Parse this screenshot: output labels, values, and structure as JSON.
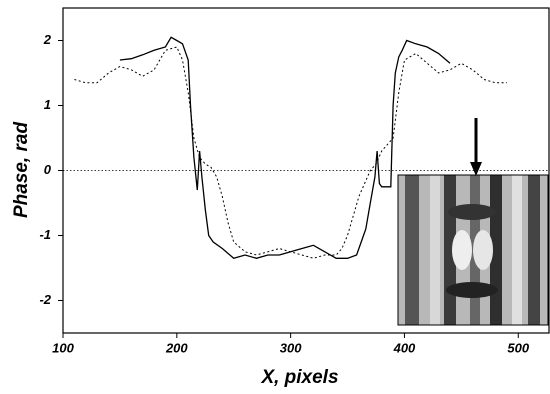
{
  "chart_data": {
    "type": "line",
    "xlabel": "X, pixels",
    "ylabel": "Phase, rad",
    "xlim": [
      100,
      527
    ],
    "ylim": [
      -2.5,
      2.5
    ],
    "xticks": [
      100,
      200,
      300,
      400,
      500
    ],
    "yticks": [
      -2,
      -1,
      0,
      1,
      2
    ],
    "reference_line": 0,
    "series": [
      {
        "color": "#000000",
        "style": "solid",
        "x": [
          150,
          160,
          170,
          180,
          190,
          195,
          200,
          205,
          210,
          212,
          215,
          218,
          220,
          222,
          225,
          228,
          232,
          240,
          250,
          260,
          270,
          280,
          290,
          300,
          310,
          320,
          330,
          340,
          350,
          358,
          362,
          366,
          370,
          374,
          376,
          378,
          380,
          388,
          390,
          392,
          395,
          398,
          402,
          410,
          420,
          430,
          440
        ],
        "values": [
          1.7,
          1.72,
          1.78,
          1.85,
          1.9,
          2.05,
          2.0,
          1.95,
          1.7,
          1.0,
          0.2,
          -0.3,
          0.3,
          -0.1,
          -0.6,
          -1.0,
          -1.1,
          -1.2,
          -1.35,
          -1.3,
          -1.35,
          -1.3,
          -1.3,
          -1.25,
          -1.2,
          -1.15,
          -1.25,
          -1.35,
          -1.35,
          -1.3,
          -1.1,
          -0.9,
          -0.5,
          -0.1,
          0.3,
          -0.2,
          -0.25,
          -0.25,
          1.0,
          1.5,
          1.75,
          1.85,
          2.0,
          1.95,
          1.9,
          1.8,
          1.65
        ]
      },
      {
        "color": "#000000",
        "style": "dotted",
        "x": [
          110,
          120,
          130,
          140,
          150,
          160,
          170,
          180,
          190,
          200,
          205,
          210,
          215,
          220,
          225,
          230,
          235,
          240,
          245,
          250,
          260,
          270,
          280,
          290,
          300,
          310,
          320,
          330,
          340,
          345,
          350,
          355,
          360,
          365,
          370,
          375,
          380,
          390,
          395,
          400,
          410,
          420,
          430,
          440,
          450,
          460,
          470,
          480,
          490
        ],
        "values": [
          1.4,
          1.35,
          1.35,
          1.5,
          1.6,
          1.55,
          1.45,
          1.55,
          1.85,
          1.9,
          1.7,
          1.2,
          0.5,
          0.2,
          0.1,
          0.05,
          -0.1,
          -0.4,
          -0.8,
          -1.1,
          -1.25,
          -1.3,
          -1.25,
          -1.2,
          -1.25,
          -1.3,
          -1.35,
          -1.3,
          -1.3,
          -1.2,
          -1.0,
          -0.7,
          -0.4,
          -0.2,
          0.0,
          0.1,
          0.3,
          0.5,
          1.2,
          1.7,
          1.8,
          1.65,
          1.5,
          1.55,
          1.65,
          1.55,
          1.4,
          1.35,
          1.35
        ]
      }
    ]
  }
}
